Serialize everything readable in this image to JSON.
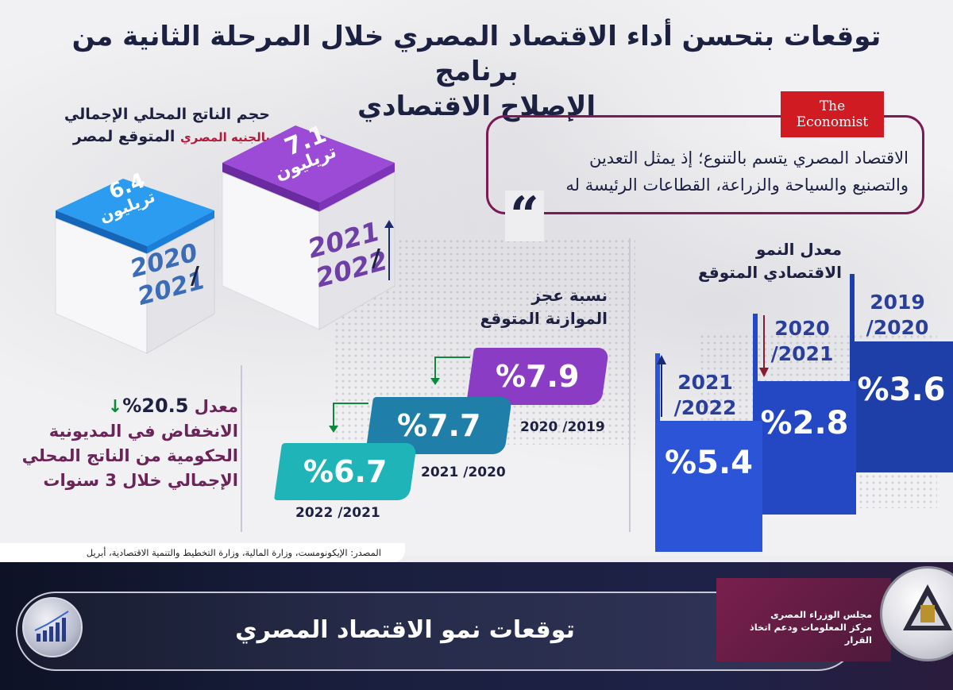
{
  "header": {
    "title_line1": "توقعات بتحسن أداء الاقتصاد المصري  خلال المرحلة الثانية من برنامج",
    "title_line2": "الإصلاح الاقتصادي"
  },
  "gdp": {
    "label_line1": "حجم الناتج المحلي الإجمالي",
    "label_line2": "المتوقع لمصر",
    "label_unit": "بالجنيه المصري",
    "items": [
      {
        "value": "6.4",
        "unit": "تريليون",
        "year_line1": "2020",
        "year_line2": "2021",
        "color": "#1a8fe3"
      },
      {
        "value": "7.1",
        "unit": "تريليون",
        "year_line1": "2021",
        "year_line2": "2022",
        "color": "#8a3cc4"
      }
    ]
  },
  "economist": {
    "logo_line1": "The",
    "logo_line2": "Economist",
    "quote_line1": "الاقتصاد المصري يتسم بالتنوع؛ إذ يمثل التعدين",
    "quote_line2": "والتصنيع والسياحة والزراعة، القطاعات الرئيسة له",
    "quote_mark": "“"
  },
  "growth": {
    "label_line1": "معدل النمو",
    "label_line2": "الاقتصادي المتوقع",
    "items": [
      {
        "value": "%3.6",
        "year_line1": "2019",
        "year_line2": "/2020",
        "color": "#1e3fa8"
      },
      {
        "value": "%2.8",
        "year_line1": "2020",
        "year_line2": "/2021",
        "color": "#2448c4"
      },
      {
        "value": "%5.4",
        "year_line1": "2021",
        "year_line2": "/2022",
        "color": "#2c54d6"
      }
    ]
  },
  "budget": {
    "label_line1": "نسبة عجز",
    "label_line2": "الموازنة المتوقع",
    "items": [
      {
        "value": "%7.9",
        "year": "2020 /2019",
        "color": "#8a3cc4"
      },
      {
        "value": "%7.7",
        "year": "2021 /2020",
        "color": "#1f7fa8"
      },
      {
        "value": "%6.7",
        "year": "2022 /2021",
        "color": "#1fb5b8"
      }
    ]
  },
  "debt": {
    "value": "20.5%",
    "word": "معدل",
    "line2": "الانخفاض في المديونية",
    "line3": "الحكومية من الناتج المحلي",
    "line4": "الإجمالي خلال 3 سنوات"
  },
  "source": {
    "text": "المصدر: الإيكونومست، وزارة المالية، وزارة التخطيط والتنمية الاقتصادية، أبريل"
  },
  "footer": {
    "title": "توقعات نمو الاقتصاد المصري",
    "org_line1": "مجلس الوزراء المصرى",
    "org_line2": "مركز المعلومات ودعم اتخاذ القرار"
  }
}
